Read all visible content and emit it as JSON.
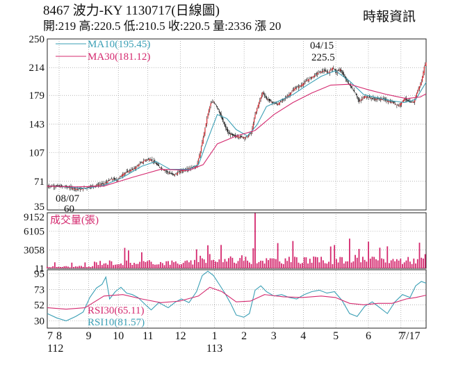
{
  "header": {
    "title": "8467  波力-KY 1130717(日線圖)",
    "stats": "開:219 高:220.5 低:210.5 收:220.5 量:2336 漲 20",
    "source": "時報資訊"
  },
  "chart_data": [
    {
      "type": "candlestick",
      "panel": "price",
      "y_ticks": [
        250,
        214,
        179,
        143,
        107,
        71,
        35
      ],
      "ylim": [
        35,
        250
      ],
      "grid": true,
      "legend": [
        {
          "label": "MA10(195.45)",
          "color": "#3a9fb5"
        },
        {
          "label": "MA30(181.12)",
          "color": "#d4286e"
        }
      ],
      "annotations": [
        {
          "date_label": "04/15",
          "value_label": "225.5",
          "kind": "high"
        },
        {
          "date_label": "08/07",
          "value_label": "60",
          "kind": "low"
        }
      ],
      "price_path": [
        [
          0,
          65
        ],
        [
          10,
          65
        ],
        [
          20,
          64
        ],
        [
          28,
          62
        ],
        [
          36,
          61
        ],
        [
          44,
          64
        ],
        [
          52,
          66
        ],
        [
          60,
          68
        ],
        [
          68,
          74
        ],
        [
          74,
          73
        ],
        [
          80,
          80
        ],
        [
          86,
          84
        ],
        [
          92,
          87
        ],
        [
          98,
          93
        ],
        [
          104,
          98
        ],
        [
          109,
          99
        ],
        [
          114,
          94
        ],
        [
          120,
          88
        ],
        [
          128,
          82
        ],
        [
          134,
          79
        ],
        [
          140,
          83
        ],
        [
          146,
          86
        ],
        [
          152,
          88
        ],
        [
          158,
          90
        ],
        [
          162,
          108
        ],
        [
          166,
          132
        ],
        [
          170,
          156
        ],
        [
          173,
          169
        ],
        [
          176,
          171
        ],
        [
          180,
          164
        ],
        [
          184,
          152
        ],
        [
          188,
          140
        ],
        [
          192,
          131
        ],
        [
          198,
          128
        ],
        [
          204,
          127
        ],
        [
          210,
          126
        ],
        [
          216,
          132
        ],
        [
          220,
          155
        ],
        [
          224,
          170
        ],
        [
          228,
          183
        ],
        [
          232,
          175
        ],
        [
          238,
          170
        ],
        [
          244,
          168
        ],
        [
          250,
          174
        ],
        [
          256,
          180
        ],
        [
          262,
          188
        ],
        [
          268,
          191
        ],
        [
          274,
          197
        ],
        [
          280,
          202
        ],
        [
          286,
          207
        ],
        [
          292,
          210
        ],
        [
          298,
          208
        ],
        [
          302,
          214
        ],
        [
          306,
          208
        ],
        [
          310,
          212
        ],
        [
          314,
          203
        ],
        [
          320,
          192
        ],
        [
          326,
          182
        ],
        [
          330,
          171
        ],
        [
          336,
          178
        ],
        [
          342,
          176
        ],
        [
          348,
          174
        ],
        [
          354,
          175
        ],
        [
          360,
          172
        ],
        [
          366,
          170
        ],
        [
          372,
          166
        ],
        [
          378,
          175
        ],
        [
          384,
          170
        ],
        [
          388,
          171
        ],
        [
          392,
          185
        ],
        [
          396,
          196
        ],
        [
          399,
          215
        ],
        [
          401,
          220.5
        ]
      ],
      "ma10": [
        [
          0,
          65
        ],
        [
          20,
          64
        ],
        [
          40,
          62
        ],
        [
          60,
          66
        ],
        [
          80,
          76
        ],
        [
          100,
          90
        ],
        [
          115,
          96
        ],
        [
          130,
          86
        ],
        [
          150,
          86
        ],
        [
          160,
          92
        ],
        [
          170,
          124
        ],
        [
          180,
          155
        ],
        [
          190,
          150
        ],
        [
          200,
          136
        ],
        [
          212,
          128
        ],
        [
          222,
          142
        ],
        [
          232,
          165
        ],
        [
          245,
          172
        ],
        [
          260,
          180
        ],
        [
          275,
          192
        ],
        [
          290,
          203
        ],
        [
          305,
          210
        ],
        [
          320,
          197
        ],
        [
          335,
          180
        ],
        [
          350,
          176
        ],
        [
          365,
          172
        ],
        [
          378,
          170
        ],
        [
          390,
          174
        ],
        [
          401,
          195.45
        ]
      ],
      "ma30": [
        [
          0,
          65
        ],
        [
          30,
          64
        ],
        [
          60,
          65
        ],
        [
          90,
          76
        ],
        [
          120,
          86
        ],
        [
          150,
          85
        ],
        [
          165,
          92
        ],
        [
          180,
          118
        ],
        [
          200,
          128
        ],
        [
          220,
          135
        ],
        [
          240,
          155
        ],
        [
          260,
          170
        ],
        [
          280,
          182
        ],
        [
          300,
          192
        ],
        [
          320,
          193
        ],
        [
          340,
          186
        ],
        [
          360,
          180
        ],
        [
          380,
          175
        ],
        [
          395,
          177
        ],
        [
          401,
          181.12
        ]
      ]
    },
    {
      "type": "bar",
      "panel": "volume",
      "y_label": "成交量(張)",
      "y_ticks": [
        9152,
        6105,
        3058,
        11
      ],
      "ylim": [
        0,
        9152
      ],
      "spikes": [
        [
          170,
          3800
        ],
        [
          220,
          9100
        ],
        [
          260,
          4500
        ],
        [
          300,
          3600
        ],
        [
          330,
          3200
        ],
        [
          352,
          3400
        ],
        [
          395,
          3058
        ]
      ],
      "last_value": 2336
    },
    {
      "type": "line",
      "panel": "rsi",
      "y_ticks": [
        95,
        73,
        52,
        30
      ],
      "ylim": [
        20,
        100
      ],
      "legend": [
        {
          "label": "RSI30(65.11)",
          "color": "#d4286e"
        },
        {
          "label": "RSI10(81.57)",
          "color": "#3a9fb5"
        }
      ],
      "rsi10": [
        [
          0,
          40
        ],
        [
          10,
          34
        ],
        [
          20,
          30
        ],
        [
          30,
          36
        ],
        [
          38,
          42
        ],
        [
          45,
          62
        ],
        [
          52,
          75
        ],
        [
          58,
          80
        ],
        [
          62,
          90
        ],
        [
          66,
          60
        ],
        [
          72,
          70
        ],
        [
          78,
          76
        ],
        [
          84,
          68
        ],
        [
          90,
          66
        ],
        [
          96,
          62
        ],
        [
          104,
          52
        ],
        [
          110,
          45
        ],
        [
          118,
          55
        ],
        [
          128,
          48
        ],
        [
          136,
          56
        ],
        [
          142,
          60
        ],
        [
          150,
          55
        ],
        [
          158,
          70
        ],
        [
          164,
          92
        ],
        [
          170,
          98
        ],
        [
          176,
          92
        ],
        [
          182,
          80
        ],
        [
          188,
          68
        ],
        [
          194,
          54
        ],
        [
          200,
          38
        ],
        [
          208,
          35
        ],
        [
          214,
          40
        ],
        [
          220,
          72
        ],
        [
          226,
          78
        ],
        [
          232,
          70
        ],
        [
          240,
          64
        ],
        [
          248,
          66
        ],
        [
          256,
          62
        ],
        [
          264,
          60
        ],
        [
          272,
          66
        ],
        [
          280,
          70
        ],
        [
          288,
          72
        ],
        [
          296,
          68
        ],
        [
          304,
          70
        ],
        [
          312,
          58
        ],
        [
          320,
          40
        ],
        [
          328,
          36
        ],
        [
          336,
          50
        ],
        [
          344,
          56
        ],
        [
          352,
          48
        ],
        [
          360,
          40
        ],
        [
          368,
          56
        ],
        [
          376,
          66
        ],
        [
          384,
          62
        ],
        [
          390,
          78
        ],
        [
          396,
          84
        ],
        [
          401,
          81.57
        ]
      ],
      "rsi30": [
        [
          0,
          48
        ],
        [
          20,
          46
        ],
        [
          40,
          48
        ],
        [
          60,
          64
        ],
        [
          80,
          66
        ],
        [
          100,
          60
        ],
        [
          120,
          55
        ],
        [
          140,
          57
        ],
        [
          160,
          64
        ],
        [
          172,
          76
        ],
        [
          185,
          70
        ],
        [
          200,
          56
        ],
        [
          215,
          57
        ],
        [
          230,
          66
        ],
        [
          250,
          63
        ],
        [
          270,
          62
        ],
        [
          290,
          64
        ],
        [
          305,
          62
        ],
        [
          320,
          54
        ],
        [
          335,
          52
        ],
        [
          350,
          54
        ],
        [
          365,
          54
        ],
        [
          380,
          60
        ],
        [
          390,
          62
        ],
        [
          401,
          65.11
        ]
      ]
    }
  ],
  "x_axis": {
    "labels": [
      {
        "text": "7",
        "pos": 0
      },
      {
        "text": "8",
        "pos": 8
      },
      {
        "text": "9",
        "pos": 28
      },
      {
        "text": "10",
        "pos": 48
      },
      {
        "text": "11",
        "pos": 68
      },
      {
        "text": "12",
        "pos": 90
      },
      {
        "text": "1",
        "pos": 113
      },
      {
        "text": "2",
        "pos": 133
      },
      {
        "text": "3",
        "pos": 153
      },
      {
        "text": "4",
        "pos": 173
      },
      {
        "text": "5",
        "pos": 195
      },
      {
        "text": "6",
        "pos": 217
      },
      {
        "text": "7",
        "pos": 239
      },
      {
        "text": "7/17",
        "pos": 252
      }
    ],
    "year_labels": [
      {
        "text": "112",
        "pos": 0
      },
      {
        "text": "113",
        "pos": 113
      }
    ],
    "span": 256
  }
}
